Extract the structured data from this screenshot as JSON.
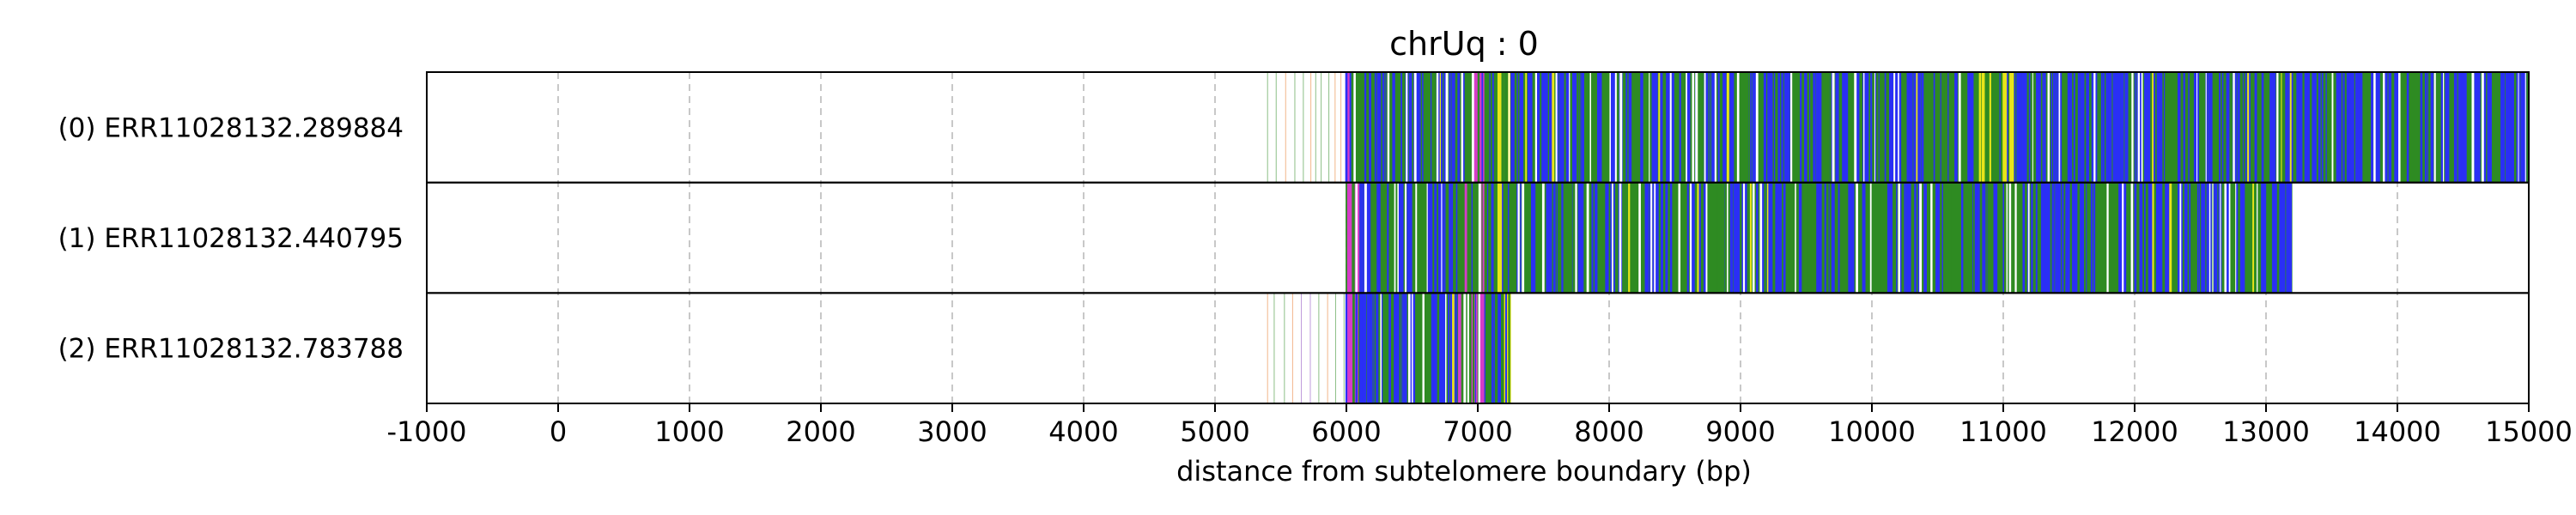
{
  "chart_data": {
    "type": "track_plot",
    "title": "chrUq : 0",
    "xlabel": "distance from subtelomere boundary (bp)",
    "xlim": [
      -1000,
      15000
    ],
    "xticks": [
      -1000,
      0,
      1000,
      2000,
      3000,
      4000,
      5000,
      6000,
      7000,
      8000,
      9000,
      10000,
      11000,
      12000,
      13000,
      14000,
      15000
    ],
    "grid": "vertical dashed",
    "colors": {
      "blue": "#2a2ff5",
      "green": "#2e8b22",
      "yellow": "#e8e41a",
      "magenta": "#d63cc8",
      "orange": "#e87a2a",
      "purple": "#8a4bbf",
      "grid": "#c8c8c8"
    },
    "rows": [
      {
        "label": "(0) ERR11028132.289884",
        "sparse_start": 5400,
        "dense_start": 6000,
        "end": 15000,
        "segments": [
          {
            "from": 6000,
            "to": 6100,
            "color": "magenta"
          },
          {
            "from": 6100,
            "to": 6900,
            "color": "blue"
          },
          {
            "from": 6900,
            "to": 7050,
            "color": "magenta"
          },
          {
            "from": 7150,
            "to": 7250,
            "color": "yellow"
          },
          {
            "from": 7250,
            "to": 10800,
            "color": "blue"
          },
          {
            "from": 10800,
            "to": 11100,
            "color": "yellow"
          },
          {
            "from": 11100,
            "to": 15000,
            "color": "blue"
          }
        ]
      },
      {
        "label": "(1) ERR11028132.440795",
        "sparse_start": 6000,
        "dense_start": 6000,
        "end": 13200,
        "segments": [
          {
            "from": 6000,
            "to": 6100,
            "color": "magenta"
          },
          {
            "from": 6100,
            "to": 6900,
            "color": "blue"
          },
          {
            "from": 6900,
            "to": 7050,
            "color": "magenta"
          },
          {
            "from": 7150,
            "to": 7250,
            "color": "yellow"
          },
          {
            "from": 7250,
            "to": 13200,
            "color": "blue"
          }
        ]
      },
      {
        "label": "(2) ERR11028132.783788",
        "sparse_start": 5400,
        "dense_start": 6000,
        "end": 7250,
        "segments": [
          {
            "from": 6000,
            "to": 6100,
            "color": "magenta"
          },
          {
            "from": 6100,
            "to": 6850,
            "color": "blue"
          },
          {
            "from": 6850,
            "to": 7050,
            "color": "magenta"
          },
          {
            "from": 7050,
            "to": 7200,
            "color": "blue"
          },
          {
            "from": 7200,
            "to": 7250,
            "color": "yellow"
          }
        ]
      }
    ]
  }
}
